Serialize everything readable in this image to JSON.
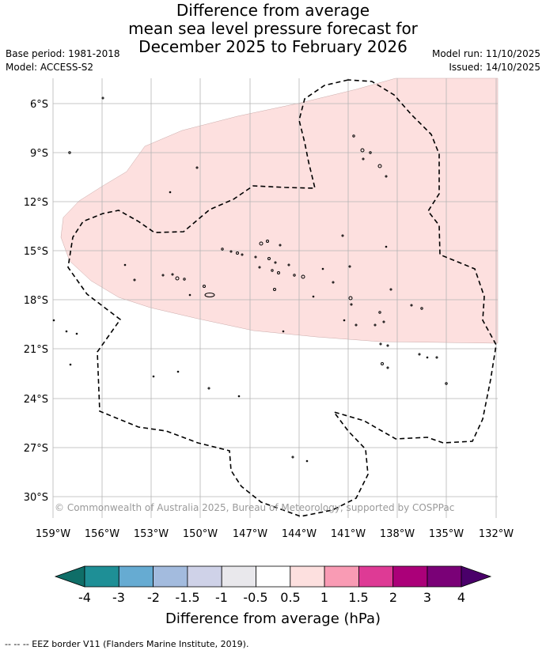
{
  "title": {
    "line1": "Difference from average",
    "line2": "mean sea level pressure forecast for",
    "line3": "December 2025 to February 2026"
  },
  "meta": {
    "base_period": "Base period: 1981-2018",
    "model": "Model: ACCESS-S2",
    "model_run": "Model run: 11/10/2025",
    "issued": "Issued: 14/10/2025"
  },
  "map": {
    "lat_labels": [
      "6°S",
      "9°S",
      "12°S",
      "15°S",
      "18°S",
      "21°S",
      "24°S",
      "27°S",
      "30°S"
    ],
    "lon_labels": [
      "159°W",
      "156°W",
      "153°W",
      "150°W",
      "147°W",
      "144°W",
      "141°W",
      "138°W",
      "135°W",
      "132°W"
    ],
    "copyright": "© Commonwealth of Australia 2025, Bureau of Meteorology, supported by COSPPac",
    "anomaly_fill_color": "#fde0df"
  },
  "colorbar": {
    "ticks": [
      "-4",
      "-3",
      "-2",
      "-1.5",
      "-1",
      "-0.5",
      "0.5",
      "1",
      "1.5",
      "2",
      "3",
      "4"
    ],
    "colors": [
      "#1e8f96",
      "#66abd2",
      "#a3bbde",
      "#cfd2e8",
      "#e9e8ec",
      "#ffffff",
      "#fde0df",
      "#f99bb4",
      "#de3a95",
      "#ab0079",
      "#7a0177"
    ],
    "low_extend_color": "#0f6e68",
    "high_extend_color": "#4a006a",
    "label": "Difference from average (hPa)"
  },
  "legend": {
    "eez": "--  --  -- EEZ border V11 (Flanders Marine Institute, 2019)."
  }
}
